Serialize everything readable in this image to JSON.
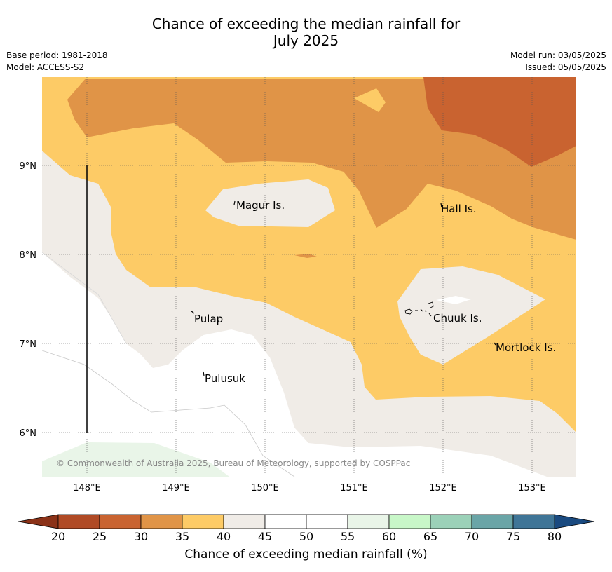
{
  "title_line1": "Chance of exceeding the median rainfall for",
  "title_line2": "July 2025",
  "meta_left": {
    "base_period": "Base period: 1981-2018",
    "model": "Model: ACCESS-S2"
  },
  "meta_right": {
    "model_run": "Model run: 03/05/2025",
    "issued": "Issued: 05/05/2025"
  },
  "map": {
    "lon_ticks": [
      "148°E",
      "149°E",
      "150°E",
      "151°E",
      "152°E",
      "153°E"
    ],
    "lat_ticks": [
      "9°N",
      "8°N",
      "7°N",
      "6°N"
    ],
    "places": [
      {
        "name": "Magur Is."
      },
      {
        "name": "Hall Is."
      },
      {
        "name": "Pulap"
      },
      {
        "name": "Chuuk Is."
      },
      {
        "name": "Mortlock Is."
      },
      {
        "name": "Pulusuk"
      }
    ],
    "copyright": "© Commonwealth of Australia 2025, Bureau of Meteorology, supported by COSPPac"
  },
  "colorbar": {
    "label": "Chance of exceeding median rainfall (%)",
    "ticks": [
      "20",
      "25",
      "30",
      "35",
      "40",
      "45",
      "50",
      "55",
      "60",
      "65",
      "70",
      "75",
      "80"
    ],
    "bin_colors": [
      "#b04a25",
      "#c96330",
      "#e09447",
      "#fdcb66",
      "#f0ece7",
      "#ffffff",
      "#ffffff",
      "#e9f5e8",
      "#c8f7c8",
      "#9bd1b8",
      "#6aa5a7",
      "#3f7597"
    ],
    "under_color": "#8b3218",
    "over_color": "#1a4a80"
  }
}
